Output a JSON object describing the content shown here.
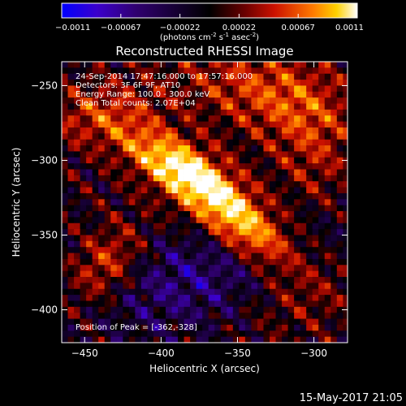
{
  "chart_data": {
    "type": "heatmap",
    "title": "Reconstructed RHESSI Image",
    "xlabel": "Heliocentric X (arcsec)",
    "ylabel": "Heliocentric Y (arcsec)",
    "xlim": [
      -465,
      -278
    ],
    "ylim": [
      -422,
      -234
    ],
    "xticks": [
      -450,
      -400,
      -350,
      -300
    ],
    "yticks": [
      -250,
      -300,
      -350,
      -400
    ],
    "colorbar": {
      "min": -0.0011,
      "max": 0.0011,
      "ticks": [
        "-0.0011",
        "-0.00067",
        "-0.00022",
        "0.00022",
        "0.00067",
        "0.0011"
      ],
      "unit_label": "(photons cm",
      "unit_exp1": "-2",
      "unit_mid": " s",
      "unit_exp2": "-1",
      "unit_mid2": " asec",
      "unit_exp3": "-2",
      "unit_end": ")"
    },
    "annotations": {
      "line1": "24-Sep-2014 17:47:16.000 to 17:57:16.000",
      "line2": "Detectors: 3F 6F 9F, AT10",
      "line3": "Energy Range: 100.0 - 300.0 keV",
      "line4": "Clean    Total counts: 2.07E+04",
      "peak": "Position of Peak = [-362,-328]"
    },
    "peak_position": [
      -362,
      -328
    ],
    "colors": {
      "min": "#0000ff",
      "zero": "#000000",
      "mid": "#cc1100",
      "high": "#ffaa00",
      "max": "#ffffff"
    }
  },
  "footer": {
    "timestamp": "15-May-2017 21:05"
  }
}
